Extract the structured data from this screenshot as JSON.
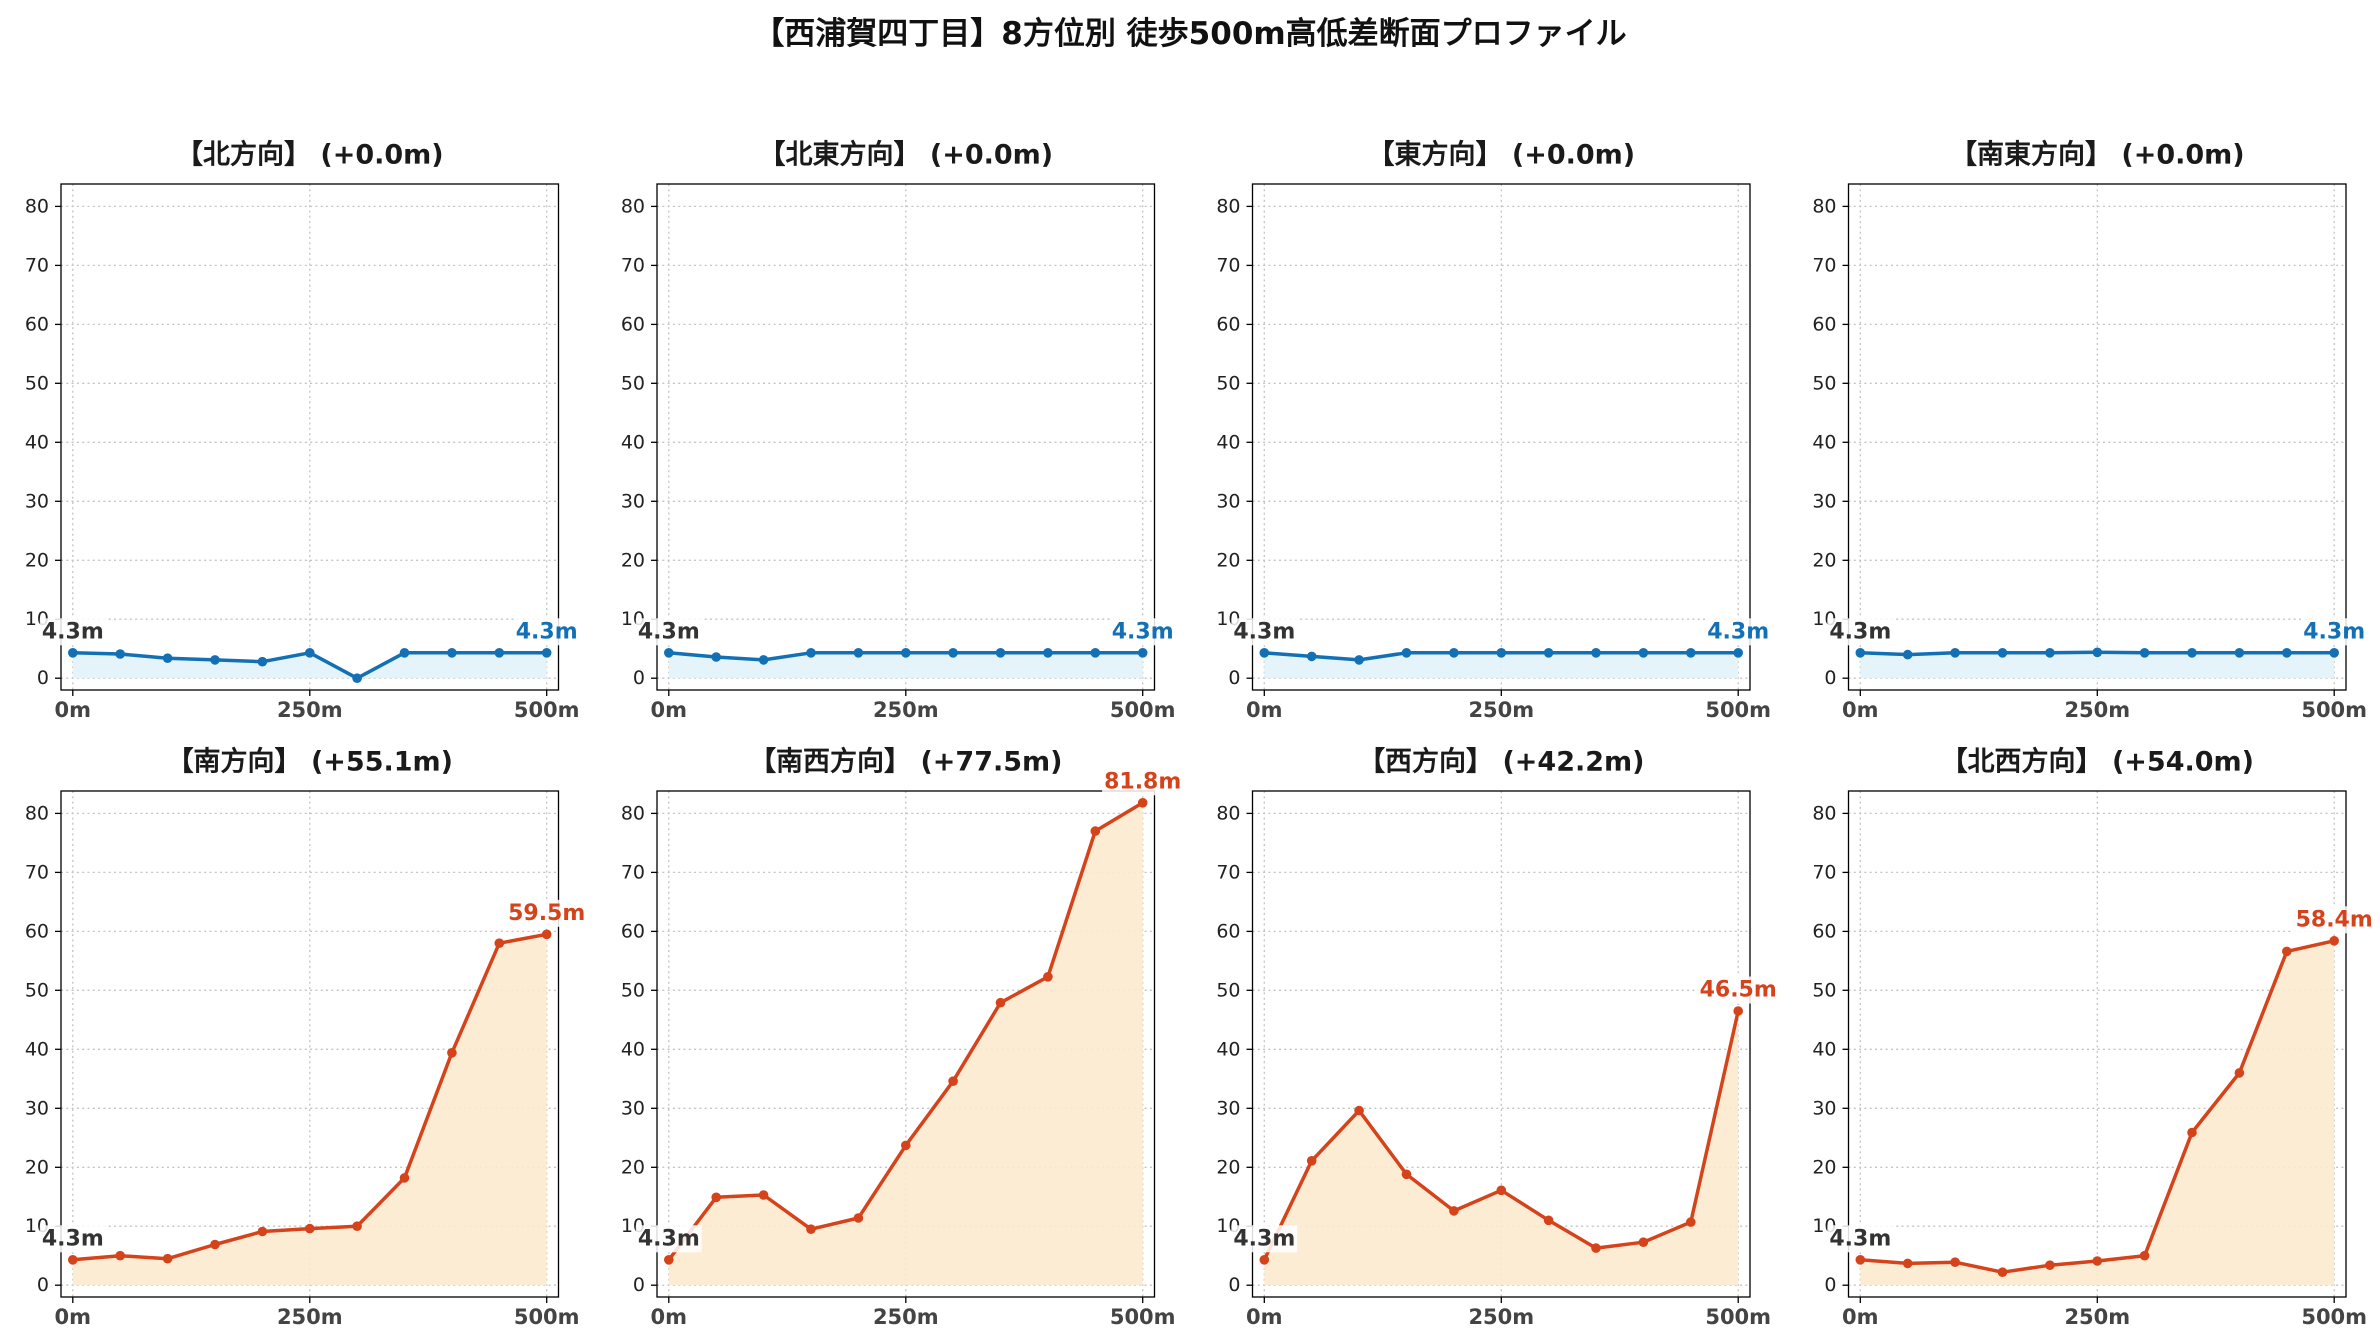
{
  "title": "【西浦賀四丁目】8方位別 徒歩500m高低差断面プロファイル",
  "colors": {
    "flat_line": "#1370b5",
    "flat_fill": "#e1f3fa",
    "rise_line": "#d5431b",
    "rise_fill": "#fdeacf",
    "start_label": "#333333",
    "grid": "#c4c4c4"
  },
  "chart_data": [
    {
      "type": "area",
      "title": "【北方向】 (+0.0m)",
      "x": [
        0,
        50,
        100,
        150,
        200,
        250,
        300,
        350,
        400,
        450,
        500
      ],
      "series": [
        {
          "values": [
            4.3,
            4.1,
            3.4,
            3.1,
            2.8,
            4.3,
            0.0,
            4.3,
            4.3,
            4.3,
            4.3
          ],
          "color": "#1370b5",
          "fill": "#e1f3fa"
        }
      ],
      "start_label": "4.3m",
      "end_label": "4.3m",
      "xticks": [
        0,
        250,
        500
      ],
      "xtick_labels": [
        "0m",
        "250m",
        "500m"
      ],
      "yticks": [
        0,
        10,
        20,
        30,
        40,
        50,
        60,
        70,
        80
      ],
      "ytick_labels": [
        "0",
        "10",
        "20",
        "30",
        "40",
        "50",
        "60",
        "70",
        "80"
      ],
      "xlim": [
        -12.5,
        512.5
      ],
      "ylim": [
        -2,
        83.8
      ],
      "grid": true
    },
    {
      "type": "area",
      "title": "【北東方向】 (+0.0m)",
      "x": [
        0,
        50,
        100,
        150,
        200,
        250,
        300,
        350,
        400,
        450,
        500
      ],
      "series": [
        {
          "values": [
            4.3,
            3.6,
            3.1,
            4.3,
            4.3,
            4.3,
            4.3,
            4.3,
            4.3,
            4.3,
            4.3
          ],
          "color": "#1370b5",
          "fill": "#e1f3fa"
        }
      ],
      "start_label": "4.3m",
      "end_label": "4.3m",
      "xticks": [
        0,
        250,
        500
      ],
      "xtick_labels": [
        "0m",
        "250m",
        "500m"
      ],
      "yticks": [
        0,
        10,
        20,
        30,
        40,
        50,
        60,
        70,
        80
      ],
      "ytick_labels": [
        "0",
        "10",
        "20",
        "30",
        "40",
        "50",
        "60",
        "70",
        "80"
      ],
      "xlim": [
        -12.5,
        512.5
      ],
      "ylim": [
        -2,
        83.8
      ],
      "grid": true
    },
    {
      "type": "area",
      "title": "【東方向】 (+0.0m)",
      "x": [
        0,
        50,
        100,
        150,
        200,
        250,
        300,
        350,
        400,
        450,
        500
      ],
      "series": [
        {
          "values": [
            4.3,
            3.7,
            3.1,
            4.3,
            4.3,
            4.3,
            4.3,
            4.3,
            4.3,
            4.3,
            4.3
          ],
          "color": "#1370b5",
          "fill": "#e1f3fa"
        }
      ],
      "start_label": "4.3m",
      "end_label": "4.3m",
      "xticks": [
        0,
        250,
        500
      ],
      "xtick_labels": [
        "0m",
        "250m",
        "500m"
      ],
      "yticks": [
        0,
        10,
        20,
        30,
        40,
        50,
        60,
        70,
        80
      ],
      "ytick_labels": [
        "0",
        "10",
        "20",
        "30",
        "40",
        "50",
        "60",
        "70",
        "80"
      ],
      "xlim": [
        -12.5,
        512.5
      ],
      "ylim": [
        -2,
        83.8
      ],
      "grid": true
    },
    {
      "type": "area",
      "title": "【南東方向】 (+0.0m)",
      "x": [
        0,
        50,
        100,
        150,
        200,
        250,
        300,
        350,
        400,
        450,
        500
      ],
      "series": [
        {
          "values": [
            4.3,
            4.0,
            4.3,
            4.3,
            4.3,
            4.4,
            4.3,
            4.3,
            4.3,
            4.3,
            4.3
          ],
          "color": "#1370b5",
          "fill": "#e1f3fa"
        }
      ],
      "start_label": "4.3m",
      "end_label": "4.3m",
      "xticks": [
        0,
        250,
        500
      ],
      "xtick_labels": [
        "0m",
        "250m",
        "500m"
      ],
      "yticks": [
        0,
        10,
        20,
        30,
        40,
        50,
        60,
        70,
        80
      ],
      "ytick_labels": [
        "0",
        "10",
        "20",
        "30",
        "40",
        "50",
        "60",
        "70",
        "80"
      ],
      "xlim": [
        -12.5,
        512.5
      ],
      "ylim": [
        -2,
        83.8
      ],
      "grid": true
    },
    {
      "type": "area",
      "title": "【南方向】 (+55.1m)",
      "x": [
        0,
        50,
        100,
        150,
        200,
        250,
        300,
        350,
        400,
        450,
        500
      ],
      "series": [
        {
          "values": [
            4.3,
            5.0,
            4.5,
            6.9,
            9.1,
            9.6,
            10.0,
            18.2,
            39.4,
            58.0,
            59.5
          ],
          "color": "#d5431b",
          "fill": "#fdeacf"
        }
      ],
      "start_label": "4.3m",
      "end_label": "59.5m",
      "xticks": [
        0,
        250,
        500
      ],
      "xtick_labels": [
        "0m",
        "250m",
        "500m"
      ],
      "yticks": [
        0,
        10,
        20,
        30,
        40,
        50,
        60,
        70,
        80
      ],
      "ytick_labels": [
        "0",
        "10",
        "20",
        "30",
        "40",
        "50",
        "60",
        "70",
        "80"
      ],
      "xlim": [
        -12.5,
        512.5
      ],
      "ylim": [
        -2,
        83.8
      ],
      "grid": true
    },
    {
      "type": "area",
      "title": "【南西方向】 (+77.5m)",
      "x": [
        0,
        50,
        100,
        150,
        200,
        250,
        300,
        350,
        400,
        450,
        500
      ],
      "series": [
        {
          "values": [
            4.3,
            14.9,
            15.3,
            9.5,
            11.4,
            23.7,
            34.6,
            47.9,
            52.3,
            77.0,
            81.8
          ],
          "color": "#d5431b",
          "fill": "#fdeacf"
        }
      ],
      "start_label": "4.3m",
      "end_label": "81.8m",
      "xticks": [
        0,
        250,
        500
      ],
      "xtick_labels": [
        "0m",
        "250m",
        "500m"
      ],
      "yticks": [
        0,
        10,
        20,
        30,
        40,
        50,
        60,
        70,
        80
      ],
      "ytick_labels": [
        "0",
        "10",
        "20",
        "30",
        "40",
        "50",
        "60",
        "70",
        "80"
      ],
      "xlim": [
        -12.5,
        512.5
      ],
      "ylim": [
        -2,
        83.8
      ],
      "grid": true
    },
    {
      "type": "area",
      "title": "【西方向】 (+42.2m)",
      "x": [
        0,
        50,
        100,
        150,
        200,
        250,
        300,
        350,
        400,
        450,
        500
      ],
      "series": [
        {
          "values": [
            4.3,
            21.1,
            29.6,
            18.8,
            12.6,
            16.1,
            11.0,
            6.3,
            7.3,
            10.7,
            46.5
          ],
          "color": "#d5431b",
          "fill": "#fdeacf"
        }
      ],
      "start_label": "4.3m",
      "end_label": "46.5m",
      "xticks": [
        0,
        250,
        500
      ],
      "xtick_labels": [
        "0m",
        "250m",
        "500m"
      ],
      "yticks": [
        0,
        10,
        20,
        30,
        40,
        50,
        60,
        70,
        80
      ],
      "ytick_labels": [
        "0",
        "10",
        "20",
        "30",
        "40",
        "50",
        "60",
        "70",
        "80"
      ],
      "xlim": [
        -12.5,
        512.5
      ],
      "ylim": [
        -2,
        83.8
      ],
      "grid": true
    },
    {
      "type": "area",
      "title": "【北西方向】 (+54.0m)",
      "x": [
        0,
        50,
        100,
        150,
        200,
        250,
        300,
        350,
        400,
        450,
        500
      ],
      "series": [
        {
          "values": [
            4.3,
            3.7,
            3.9,
            2.2,
            3.4,
            4.1,
            5.0,
            25.9,
            36.0,
            56.6,
            58.4
          ],
          "color": "#d5431b",
          "fill": "#fdeacf"
        }
      ],
      "start_label": "4.3m",
      "end_label": "58.4m",
      "xticks": [
        0,
        250,
        500
      ],
      "xtick_labels": [
        "0m",
        "250m",
        "500m"
      ],
      "yticks": [
        0,
        10,
        20,
        30,
        40,
        50,
        60,
        70,
        80
      ],
      "ytick_labels": [
        "0",
        "10",
        "20",
        "30",
        "40",
        "50",
        "60",
        "70",
        "80"
      ],
      "xlim": [
        -12.5,
        512.5
      ],
      "ylim": [
        -2,
        83.8
      ],
      "grid": true
    }
  ]
}
